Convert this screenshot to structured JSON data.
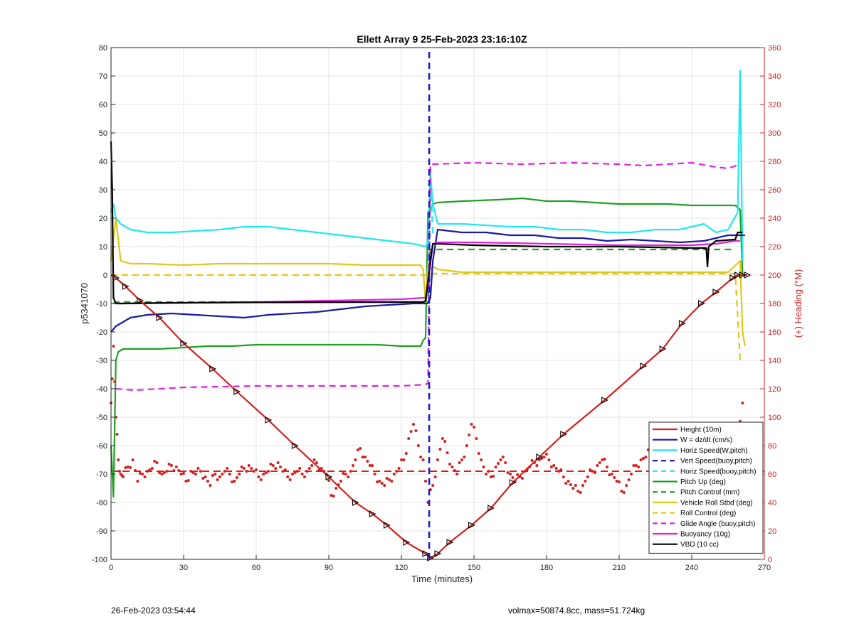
{
  "chart_data": {
    "type": "line",
    "title": "Ellett Array 9 25-Feb-2023 23:16:10Z",
    "xlabel": "Time (minutes)",
    "ylabel_left": "p5341070",
    "ylabel_right": "(+) Heading (°M)",
    "xlim": [
      0,
      270
    ],
    "ylim_left": [
      -100,
      80
    ],
    "ylim_right": [
      0,
      360
    ],
    "x_ticks": [
      0,
      30,
      60,
      90,
      120,
      150,
      180,
      210,
      240,
      270
    ],
    "y_ticks_left": [
      -100,
      -90,
      -80,
      -70,
      -60,
      -50,
      -40,
      -30,
      -20,
      -10,
      0,
      10,
      20,
      30,
      40,
      50,
      60,
      70,
      80
    ],
    "y_ticks_right": [
      0,
      20,
      40,
      60,
      80,
      100,
      120,
      140,
      160,
      180,
      200,
      220,
      240,
      260,
      280,
      300,
      320,
      340,
      360
    ],
    "grid": true,
    "legend_position": "bottom-right",
    "series": [
      {
        "name": "Height (10m)",
        "color": "#d62020",
        "style": "solid",
        "markers": "triangle",
        "x": [
          0,
          2,
          6,
          12,
          20,
          30,
          42,
          52,
          65,
          76,
          90,
          101,
          108,
          114,
          122,
          130,
          132,
          135,
          140,
          149,
          157,
          166,
          177,
          187,
          204,
          220,
          228,
          236,
          244,
          250,
          257,
          259,
          261,
          263
        ],
        "y": [
          0,
          -1,
          -4,
          -9,
          -15,
          -24,
          -33,
          -41,
          -51,
          -60,
          -71,
          -80,
          -84,
          -88,
          -94,
          -98,
          -99.5,
          -98,
          -94,
          -88,
          -82,
          -73,
          -64,
          -56,
          -44,
          -32,
          -26,
          -17,
          -10,
          -6,
          -1,
          0,
          0,
          0
        ]
      },
      {
        "name": "W = dz/dt (cm/s)",
        "color": "#1a1aa8",
        "style": "solid",
        "x": [
          0,
          2,
          4,
          8,
          15,
          25,
          35,
          45,
          55,
          65,
          75,
          85,
          95,
          105,
          115,
          125,
          131,
          132,
          133,
          135,
          145,
          155,
          165,
          175,
          185,
          195,
          205,
          215,
          225,
          235,
          245,
          250,
          255,
          260,
          262
        ],
        "y": [
          -20,
          -18,
          -17,
          -15,
          -14,
          -13.5,
          -14,
          -14.5,
          -15,
          -14,
          -13.5,
          -13,
          -12,
          -11,
          -10.5,
          -10,
          -10,
          -8,
          5,
          16,
          15,
          15,
          14,
          14,
          13,
          13,
          12,
          12.5,
          12,
          11.5,
          12,
          13,
          14,
          14,
          14
        ]
      },
      {
        "name": "Horiz Speed(W,pitch)",
        "color": "#20e8f0",
        "style": "solid",
        "x": [
          0,
          1,
          2,
          4,
          8,
          15,
          25,
          35,
          45,
          55,
          65,
          75,
          85,
          95,
          105,
          115,
          125,
          130,
          131,
          132,
          133,
          135,
          145,
          155,
          165,
          175,
          185,
          195,
          205,
          215,
          225,
          235,
          245,
          250,
          255,
          259,
          260,
          261
        ],
        "y": [
          22,
          25,
          20,
          18,
          16,
          15,
          15,
          15.5,
          16,
          17,
          17,
          16,
          15,
          14,
          13,
          12,
          11,
          10,
          12,
          35,
          25,
          18,
          18,
          17.5,
          17,
          17,
          16,
          16,
          15,
          15,
          16,
          16,
          18,
          15,
          16,
          22,
          72,
          5
        ]
      },
      {
        "name": "Vert Speed(buoy,pitch)",
        "color": "#1a1ad0",
        "style": "dashed",
        "x": [
          131.5,
          131.5
        ],
        "y": [
          -100,
          80
        ]
      },
      {
        "name": "Horiz Speed(buoy,pitch)",
        "color": "#20e8f0",
        "style": "dashed",
        "x": [
          131,
          132,
          133
        ],
        "y": [
          10,
          36,
          14
        ]
      },
      {
        "name": "Pitch Up (deg)",
        "color": "#20a020",
        "style": "solid",
        "x": [
          0,
          1,
          2,
          3,
          5,
          10,
          20,
          30,
          40,
          50,
          60,
          70,
          80,
          90,
          100,
          110,
          120,
          128,
          129,
          130,
          131,
          133,
          135,
          145,
          160,
          170,
          180,
          190,
          200,
          210,
          220,
          230,
          240,
          250,
          258,
          260,
          261
        ],
        "y": [
          -60,
          -78,
          -30,
          -27,
          -26,
          -26,
          -26,
          -25.5,
          -25,
          -25,
          -24.5,
          -24.5,
          -24.5,
          -24.5,
          -24.5,
          -24.5,
          -25,
          -25,
          -23,
          -22,
          22,
          25,
          25.5,
          26,
          26.5,
          27,
          26,
          26,
          25.5,
          25,
          25,
          25,
          24.5,
          24.5,
          24.5,
          23,
          0
        ]
      },
      {
        "name": "Pitch Control (mm)",
        "color": "#20a020",
        "style": "dashed",
        "x": [
          1,
          2,
          30,
          60,
          90,
          120,
          131,
          132,
          133,
          250,
          258
        ],
        "y": [
          -10,
          -9.5,
          -9.5,
          -9.5,
          -9.5,
          -9.5,
          -9.5,
          9,
          9,
          9,
          9
        ]
      },
      {
        "name": "Vehicle Roll Stbd (deg)",
        "color": "#e0c818",
        "style": "solid",
        "x": [
          0,
          2,
          4,
          8,
          15,
          30,
          45,
          60,
          75,
          90,
          105,
          120,
          128,
          129,
          130,
          131,
          132,
          133,
          135,
          145,
          160,
          175,
          190,
          205,
          220,
          235,
          245,
          255,
          260,
          261,
          262
        ],
        "y": [
          5,
          20,
          5,
          4,
          4,
          3.5,
          4,
          4,
          4,
          4,
          3.5,
          3.5,
          3.5,
          2,
          -10,
          4,
          2,
          3,
          2,
          1,
          1,
          1,
          1,
          1,
          1,
          1,
          1,
          1,
          5,
          -20,
          -25
        ]
      },
      {
        "name": "Roll Control (deg)",
        "color": "#e0c818",
        "style": "dashed",
        "x": [
          0,
          4,
          10,
          30,
          60,
          90,
          120,
          131,
          132,
          150,
          180,
          210,
          240,
          258,
          260
        ],
        "y": [
          0,
          0,
          0,
          0,
          0,
          0,
          0,
          0,
          0.5,
          0.5,
          0.5,
          0.5,
          0.5,
          0.5,
          -30
        ]
      },
      {
        "name": "Glide Angle (buoy,pitch)",
        "color": "#e020e0",
        "style": "dashed",
        "x": [
          2,
          10,
          30,
          60,
          90,
          120,
          130,
          131,
          132,
          133,
          150,
          170,
          190,
          210,
          220,
          230,
          240,
          250,
          255,
          260
        ],
        "y": [
          -40,
          -40.5,
          -39.5,
          -39,
          -39,
          -39,
          -38.5,
          -38,
          39,
          39,
          39.5,
          39,
          39.5,
          39,
          38.5,
          39,
          39.5,
          38,
          37.5,
          39
        ]
      },
      {
        "name": "Buoyancy (10g)",
        "color": "#e020e0",
        "style": "solid",
        "x": [
          2,
          10,
          30,
          60,
          90,
          120,
          129,
          130,
          131,
          132,
          133,
          135,
          150,
          180,
          210,
          240,
          250,
          258,
          260
        ],
        "y": [
          -10,
          -10,
          -9.8,
          -9.5,
          -9,
          -8.5,
          -8,
          -8,
          -4,
          4,
          11,
          11.5,
          11.5,
          11,
          10.5,
          10.5,
          11,
          12,
          12
        ]
      },
      {
        "name": "VBD (10 cc)",
        "color": "#000000",
        "style": "solid",
        "x": [
          0,
          0.5,
          1,
          2,
          5,
          20,
          60,
          100,
          125,
          129,
          130,
          131,
          132,
          133,
          135,
          150,
          180,
          210,
          240,
          246,
          246.5,
          247,
          250,
          258,
          259,
          261
        ],
        "y": [
          47,
          30,
          -8,
          -10,
          -10,
          -9.8,
          -9.6,
          -9.5,
          -9.5,
          -9.5,
          -9,
          -2,
          5,
          11,
          11,
          10.5,
          10,
          10,
          9.5,
          9.5,
          3,
          10,
          12,
          12.5,
          15,
          15
        ]
      }
    ],
    "heading_right_axis": {
      "name": "(+) Heading (°M)",
      "color": "#d62020",
      "style": "dots",
      "mean_heading": 62,
      "x": [
        0,
        1,
        2,
        3,
        4,
        5,
        7,
        9,
        11,
        13,
        15,
        17,
        19,
        21,
        23,
        25,
        27,
        29,
        31,
        33,
        35,
        37,
        39,
        41,
        43,
        45,
        47,
        49,
        51,
        53,
        55,
        57,
        59,
        61,
        63,
        65,
        67,
        69,
        71,
        73,
        75,
        77,
        79,
        81,
        83,
        85,
        87,
        89,
        91,
        93,
        95,
        97,
        99,
        101,
        103,
        105,
        107,
        109,
        111,
        113,
        115,
        117,
        119,
        121,
        123,
        125,
        127,
        129,
        131,
        133,
        135,
        137,
        139,
        141,
        143,
        145,
        147,
        149,
        151,
        153,
        155,
        157,
        159,
        161,
        163,
        165,
        167,
        169,
        171,
        173,
        175,
        177,
        179,
        181,
        183,
        185,
        187,
        189,
        191,
        193,
        195,
        197,
        199,
        201,
        203,
        205,
        207,
        209,
        211,
        213,
        215,
        217,
        219,
        221,
        223,
        225,
        227,
        229,
        231,
        233,
        235,
        237,
        239,
        241,
        243,
        245,
        247,
        249,
        251,
        253,
        255,
        257,
        259,
        261
      ],
      "y": [
        110,
        150,
        100,
        70,
        60,
        58,
        65,
        70,
        55,
        60,
        62,
        64,
        68,
        60,
        62,
        66,
        65,
        60,
        55,
        62,
        60,
        62,
        58,
        52,
        60,
        58,
        62,
        60,
        55,
        60,
        64,
        66,
        62,
        58,
        60,
        62,
        66,
        68,
        62,
        58,
        60,
        62,
        60,
        62,
        66,
        68,
        64,
        60,
        45,
        50,
        55,
        60,
        62,
        70,
        78,
        72,
        66,
        60,
        55,
        52,
        56,
        60,
        64,
        70,
        85,
        95,
        80,
        70,
        40,
        52,
        70,
        85,
        75,
        65,
        60,
        70,
        80,
        95,
        85,
        70,
        60,
        58,
        65,
        70,
        68,
        60,
        55,
        58,
        62,
        65,
        68,
        70,
        72,
        70,
        66,
        62,
        58,
        55,
        50,
        48,
        52,
        58,
        62,
        66,
        70,
        65,
        60,
        55,
        48,
        52,
        60,
        66,
        70,
        72,
        76,
        70,
        66,
        62,
        60,
        58,
        62,
        60,
        64,
        66,
        60,
        58,
        62,
        66,
        68,
        60,
        55,
        70,
        90,
        110
      ]
    }
  },
  "footer": {
    "left": "26-Feb-2023 03:54:44",
    "right": "volmax=50874.8cc, mass=51.724kg"
  }
}
